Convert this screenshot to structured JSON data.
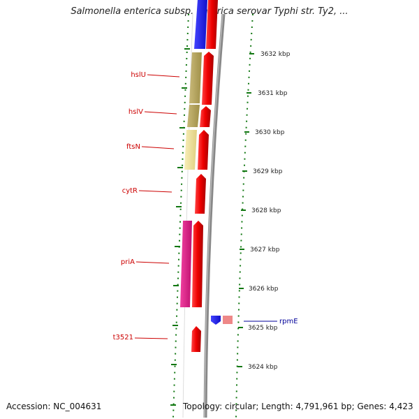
{
  "title": "Salmonella enterica subsp. enterica serovar Typhi str. Ty2, ...",
  "footer": {
    "accession": "Accession: NC_004631",
    "topology": "Topology: circular; Length: 4,791,961 bp; Genes: 4,423"
  },
  "colors": {
    "forward_gene": "#ee0000",
    "reverse_blue": "#1a1aee",
    "hslU_cog": "#b8a860",
    "hslV_cog": "#c8b870",
    "ftsN_cog": "#f0e4a0",
    "priA_cog": "#e0208a",
    "rpmE_cog": "#ee8888",
    "backbone": "#888888",
    "tick": "#117711",
    "label_red": "#cc0000",
    "label_blue": "#000099"
  },
  "genes": [
    {
      "name": "hslU",
      "icon": "forward-arrow"
    },
    {
      "name": "hslV",
      "icon": "forward-arrow"
    },
    {
      "name": "ftsN",
      "icon": "forward-arrow"
    },
    {
      "name": "cytR",
      "icon": "forward-arrow"
    },
    {
      "name": "priA",
      "icon": "forward-arrow"
    },
    {
      "name": "rpmE",
      "icon": "reverse-arrow"
    },
    {
      "name": "t3521",
      "icon": "forward-arrow"
    }
  ],
  "scale_labels": [
    "3632 kbp",
    "3631 kbp",
    "3630 kbp",
    "3629 kbp",
    "3628 kbp",
    "3627 kbp",
    "3626 kbp",
    "3625 kbp",
    "3624 kbp"
  ]
}
